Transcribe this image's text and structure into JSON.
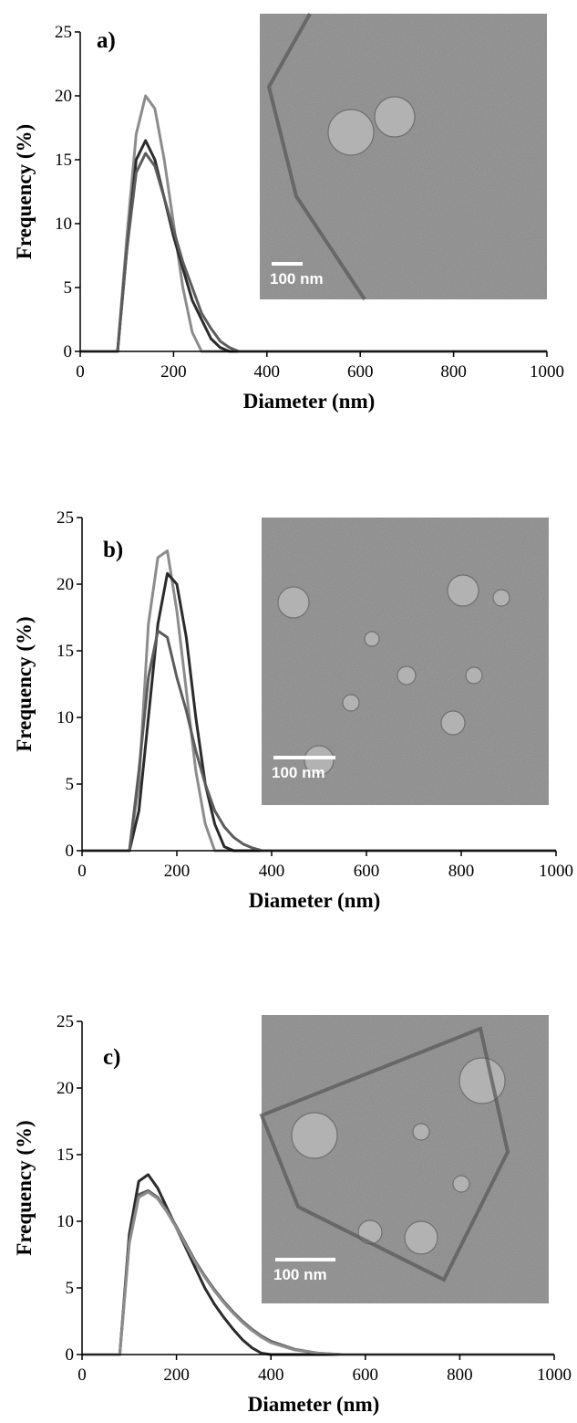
{
  "chart_data": [
    {
      "type": "line",
      "panel_label": "a)",
      "inset_label": "100 nm",
      "x_label": "Diameter (nm)",
      "y_label": "Frequency (%)",
      "x": [
        0,
        80,
        100,
        120,
        140,
        160,
        180,
        200,
        220,
        240,
        260,
        280,
        300,
        320,
        340,
        360,
        380,
        400,
        450,
        500,
        550,
        600,
        1000
      ],
      "xlim": [
        0,
        1000
      ],
      "xticks": [
        0,
        200,
        400,
        600,
        800,
        1000
      ],
      "ylim": [
        0,
        25
      ],
      "yticks": [
        0,
        5,
        10,
        15,
        20,
        25
      ],
      "series": [
        {
          "color": "#8c8c8c",
          "values": [
            0,
            0,
            9,
            17,
            20,
            19,
            15,
            10,
            5,
            1.5,
            0,
            0,
            0,
            0,
            0,
            0,
            0,
            0,
            0,
            0,
            0,
            0,
            0
          ]
        },
        {
          "color": "#2b2b2b",
          "values": [
            0,
            0,
            8,
            15,
            16.5,
            15,
            12,
            9,
            6.5,
            4,
            2.5,
            1,
            0.3,
            0,
            0,
            0,
            0,
            0,
            0,
            0,
            0,
            0,
            0
          ]
        },
        {
          "color": "#5c5c5c",
          "values": [
            0,
            0,
            8,
            14,
            15.5,
            14.5,
            12,
            9.5,
            7,
            5,
            3,
            1.8,
            0.8,
            0.3,
            0,
            0,
            0,
            0,
            0,
            0,
            0,
            0,
            0
          ]
        }
      ]
    },
    {
      "type": "line",
      "panel_label": "b)",
      "inset_label": "100 nm",
      "x_label": "Diameter (nm)",
      "y_label": "Frequency (%)",
      "x": [
        0,
        80,
        100,
        120,
        140,
        160,
        180,
        200,
        220,
        240,
        260,
        280,
        300,
        320,
        340,
        360,
        380,
        400,
        450,
        500,
        550,
        600,
        1000
      ],
      "xlim": [
        0,
        1000
      ],
      "xticks": [
        0,
        200,
        400,
        600,
        800,
        1000
      ],
      "ylim": [
        0,
        25
      ],
      "yticks": [
        0,
        5,
        10,
        15,
        20,
        25
      ],
      "series": [
        {
          "color": "#8c8c8c",
          "values": [
            0,
            0,
            0,
            5,
            17,
            22,
            22.5,
            18,
            12,
            6,
            2,
            0,
            0,
            0,
            0,
            0,
            0,
            0,
            0,
            0,
            0,
            0,
            0
          ]
        },
        {
          "color": "#2b2b2b",
          "values": [
            0,
            0,
            0,
            3,
            10,
            17,
            20.8,
            20,
            16,
            10,
            5,
            2,
            0.3,
            0,
            0,
            0,
            0,
            0,
            0,
            0,
            0,
            0,
            0
          ]
        },
        {
          "color": "#5c5c5c",
          "values": [
            0,
            0,
            0,
            6,
            13,
            16.5,
            16,
            13,
            10.5,
            7.5,
            5,
            3,
            1.8,
            1,
            0.5,
            0.2,
            0,
            0,
            0,
            0,
            0,
            0,
            0
          ]
        }
      ]
    },
    {
      "type": "line",
      "panel_label": "c)",
      "inset_label": "100 nm",
      "x_label": "Diameter (nm)",
      "y_label": "Frequency (%)",
      "x": [
        0,
        80,
        100,
        120,
        140,
        160,
        180,
        200,
        220,
        240,
        260,
        280,
        300,
        320,
        340,
        360,
        380,
        400,
        450,
        500,
        550,
        600,
        1000
      ],
      "xlim": [
        0,
        1000
      ],
      "xticks": [
        0,
        200,
        400,
        600,
        800,
        1000
      ],
      "ylim": [
        0,
        25
      ],
      "yticks": [
        0,
        5,
        10,
        15,
        20,
        25
      ],
      "series": [
        {
          "color": "#2b2b2b",
          "values": [
            0,
            0,
            9,
            13,
            13.5,
            12.5,
            11,
            9.5,
            8,
            6.5,
            5,
            3.8,
            2.8,
            1.9,
            1.1,
            0.5,
            0.1,
            0,
            0,
            0,
            0,
            0,
            0
          ]
        },
        {
          "color": "#5c5c5c",
          "values": [
            0,
            0,
            8.5,
            12,
            12.3,
            11.8,
            10.8,
            9.6,
            8.3,
            7,
            5.9,
            4.9,
            4,
            3.2,
            2.5,
            1.9,
            1.4,
            1,
            0.4,
            0.1,
            0,
            0,
            0
          ]
        },
        {
          "color": "#8c8c8c",
          "values": [
            0,
            0,
            8.3,
            11.8,
            12.2,
            11.7,
            10.7,
            9.5,
            8.2,
            6.9,
            5.8,
            4.8,
            3.9,
            3.1,
            2.4,
            1.8,
            1.3,
            0.9,
            0.35,
            0.1,
            0,
            0,
            0
          ]
        }
      ]
    }
  ]
}
